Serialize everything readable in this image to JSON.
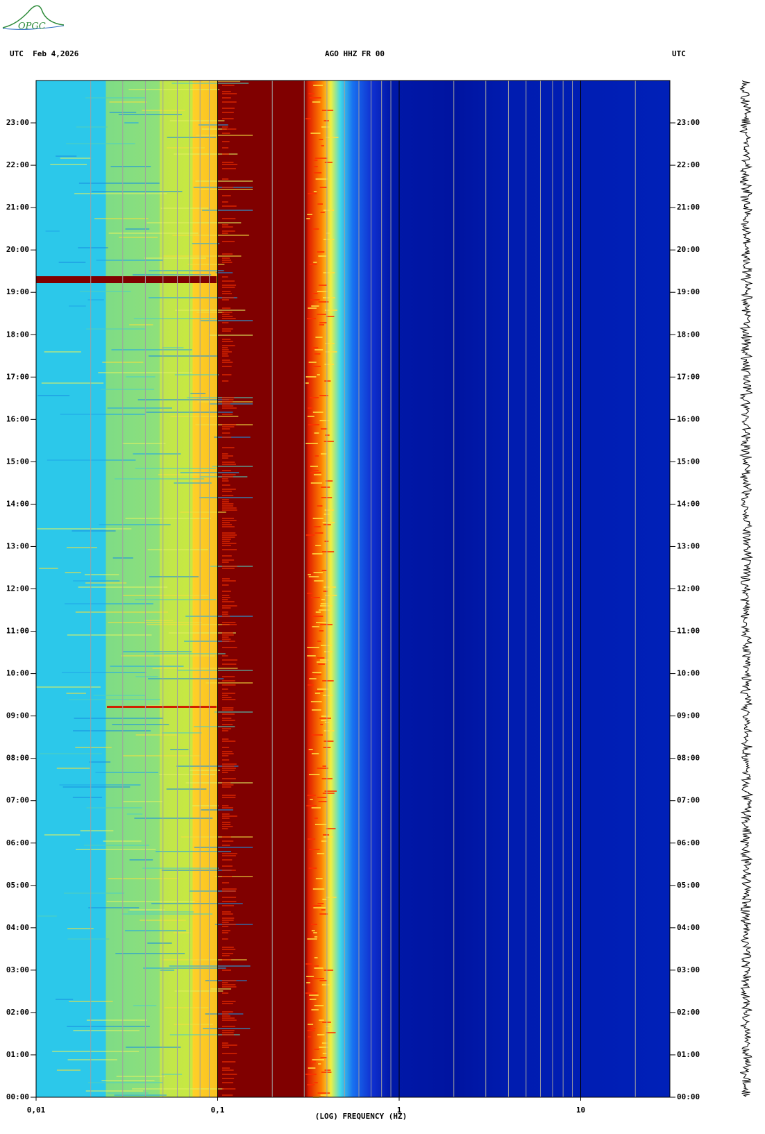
{
  "logo": "OPGC",
  "chart_data": {
    "type": "spectrogram",
    "title": "AGO HHZ FR 00",
    "date": "UTC  Feb 4,2026",
    "right_label": "UTC",
    "xlabel": "(LOG) FREQUENCY (HZ)",
    "xscale": "log",
    "xlim": [
      0.01,
      31
    ],
    "xticks": [
      {
        "value": 0.01,
        "label": "0,01"
      },
      {
        "value": 0.1,
        "label": "0,1"
      },
      1,
      10
    ],
    "xgrid": [
      0.02,
      0.03,
      0.04,
      0.05,
      0.06,
      0.07,
      0.08,
      0.09,
      0.2,
      0.3,
      0.4,
      0.5,
      0.6,
      0.7,
      0.8,
      0.9,
      2,
      3,
      4,
      5,
      6,
      7,
      8,
      9,
      20
    ],
    "ylim": [
      0,
      24
    ],
    "yticks": [
      {
        "value": 0,
        "label": "00:00"
      },
      {
        "value": 1,
        "label": "01:00"
      },
      {
        "value": 2,
        "label": "02:00"
      },
      {
        "value": 3,
        "label": "03:00"
      },
      {
        "value": 4,
        "label": "04:00"
      },
      {
        "value": 5,
        "label": "05:00"
      },
      {
        "value": 6,
        "label": "06:00"
      },
      {
        "value": 7,
        "label": "07:00"
      },
      {
        "value": 8,
        "label": "08:00"
      },
      {
        "value": 9,
        "label": "09:00"
      },
      {
        "value": 10,
        "label": "10:00"
      },
      {
        "value": 11,
        "label": "11:00"
      },
      {
        "value": 12,
        "label": "12:00"
      },
      {
        "value": 13,
        "label": "13:00"
      },
      {
        "value": 14,
        "label": "14:00"
      },
      {
        "value": 15,
        "label": "15:00"
      },
      {
        "value": 16,
        "label": "16:00"
      },
      {
        "value": 17,
        "label": "17:00"
      },
      {
        "value": 18,
        "label": "18:00"
      },
      {
        "value": 19,
        "label": "19:00"
      },
      {
        "value": 20,
        "label": "20:00"
      },
      {
        "value": 21,
        "label": "21:00"
      },
      {
        "value": 22,
        "label": "22:00"
      },
      {
        "value": 23,
        "label": "23:00"
      }
    ]
  }
}
